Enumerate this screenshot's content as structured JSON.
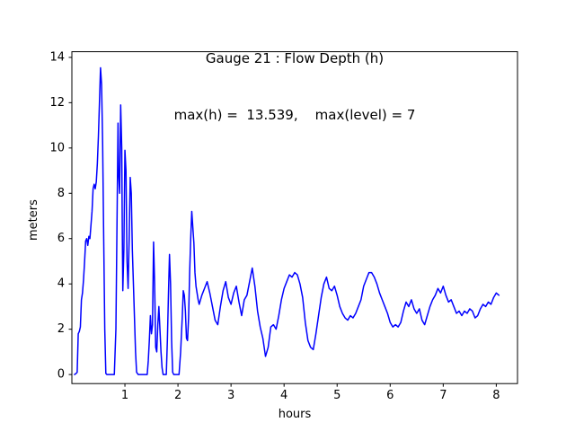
{
  "title": {
    "line1": "Gauge 21 : Flow Depth (h)",
    "line2": "max(h) =  13.539,    max(level) = 7"
  },
  "chart_data": {
    "type": "line",
    "title": "Gauge 21 : Flow Depth (h)",
    "subtitle": "max(h) =  13.539,    max(level) = 7",
    "xlabel": "hours",
    "ylabel": "meters",
    "xlim": [
      0,
      8.4
    ],
    "ylim": [
      -0.4,
      14.25
    ],
    "xticks": [
      1,
      2,
      3,
      4,
      5,
      6,
      7,
      8
    ],
    "yticks": [
      0,
      2,
      4,
      6,
      8,
      10,
      12,
      14
    ],
    "grid": false,
    "legend": "none",
    "line_color": "#0000ff",
    "max_h": 13.539,
    "max_level": 7,
    "series": [
      {
        "name": "flow-depth",
        "x": [
          0.05,
          0.08,
          0.1,
          0.12,
          0.14,
          0.16,
          0.18,
          0.2,
          0.22,
          0.24,
          0.26,
          0.28,
          0.3,
          0.32,
          0.34,
          0.36,
          0.38,
          0.4,
          0.42,
          0.44,
          0.46,
          0.48,
          0.5,
          0.52,
          0.54,
          0.56,
          0.58,
          0.6,
          0.62,
          0.64,
          0.66,
          0.8,
          0.83,
          0.85,
          0.87,
          0.88,
          0.9,
          0.92,
          0.94,
          0.95,
          0.96,
          0.98,
          1.0,
          1.02,
          1.04,
          1.06,
          1.08,
          1.1,
          1.12,
          1.14,
          1.16,
          1.18,
          1.2,
          1.22,
          1.25,
          1.42,
          1.44,
          1.46,
          1.48,
          1.5,
          1.52,
          1.54,
          1.56,
          1.58,
          1.6,
          1.62,
          1.64,
          1.66,
          1.68,
          1.7,
          1.72,
          1.78,
          1.8,
          1.82,
          1.84,
          1.86,
          1.88,
          1.9,
          1.92,
          2.02,
          2.05,
          2.08,
          2.1,
          2.12,
          2.14,
          2.16,
          2.18,
          2.2,
          2.22,
          2.24,
          2.26,
          2.28,
          2.3,
          2.32,
          2.34,
          2.36,
          2.38,
          2.4,
          2.45,
          2.5,
          2.55,
          2.6,
          2.65,
          2.7,
          2.75,
          2.8,
          2.85,
          2.9,
          2.95,
          3.0,
          3.05,
          3.1,
          3.15,
          3.2,
          3.25,
          3.3,
          3.35,
          3.4,
          3.45,
          3.5,
          3.55,
          3.6,
          3.65,
          3.7,
          3.75,
          3.8,
          3.85,
          3.9,
          3.95,
          4.0,
          4.05,
          4.1,
          4.15,
          4.2,
          4.25,
          4.3,
          4.35,
          4.4,
          4.45,
          4.5,
          4.55,
          4.6,
          4.65,
          4.7,
          4.75,
          4.8,
          4.85,
          4.9,
          4.95,
          5.0,
          5.05,
          5.1,
          5.15,
          5.2,
          5.25,
          5.3,
          5.35,
          5.4,
          5.45,
          5.5,
          5.55,
          5.6,
          5.65,
          5.7,
          5.75,
          5.8,
          5.85,
          5.9,
          5.95,
          6.0,
          6.05,
          6.1,
          6.15,
          6.2,
          6.25,
          6.3,
          6.35,
          6.4,
          6.45,
          6.5,
          6.55,
          6.6,
          6.65,
          6.7,
          6.75,
          6.8,
          6.85,
          6.9,
          6.95,
          7.0,
          7.05,
          7.1,
          7.15,
          7.2,
          7.25,
          7.3,
          7.35,
          7.4,
          7.45,
          7.5,
          7.55,
          7.6,
          7.65,
          7.7,
          7.75,
          7.8,
          7.85,
          7.9,
          7.95,
          8.0,
          8.05
        ],
        "y": [
          0.0,
          0.05,
          0.1,
          1.8,
          1.9,
          2.1,
          3.3,
          3.6,
          4.2,
          5.0,
          5.9,
          6.0,
          5.7,
          6.1,
          6.0,
          6.6,
          7.2,
          8.2,
          8.4,
          8.2,
          8.5,
          9.3,
          10.5,
          12.0,
          13.539,
          12.8,
          10.2,
          6.0,
          2.0,
          0.05,
          0.0,
          0.0,
          2.0,
          6.5,
          11.1,
          9.0,
          8.0,
          11.9,
          10.0,
          6.5,
          3.7,
          5.5,
          9.9,
          9.0,
          5.0,
          3.8,
          6.0,
          8.7,
          8.0,
          5.5,
          4.0,
          2.5,
          1.0,
          0.1,
          0.0,
          0.0,
          0.6,
          1.5,
          2.6,
          1.8,
          2.2,
          5.85,
          4.0,
          1.2,
          1.0,
          2.2,
          3.0,
          2.0,
          1.0,
          0.3,
          0.0,
          0.0,
          1.5,
          3.5,
          5.3,
          4.0,
          1.5,
          0.1,
          0.0,
          0.0,
          1.0,
          2.5,
          3.7,
          3.5,
          2.8,
          1.6,
          1.5,
          2.5,
          4.5,
          6.0,
          7.2,
          6.5,
          5.8,
          4.5,
          3.9,
          3.6,
          3.3,
          3.1,
          3.5,
          3.8,
          4.1,
          3.6,
          3.0,
          2.4,
          2.2,
          3.0,
          3.7,
          4.1,
          3.4,
          3.1,
          3.6,
          3.9,
          3.2,
          2.6,
          3.3,
          3.5,
          4.1,
          4.7,
          3.9,
          2.8,
          2.1,
          1.6,
          0.8,
          1.2,
          2.1,
          2.2,
          2.0,
          2.6,
          3.3,
          3.8,
          4.1,
          4.4,
          4.3,
          4.5,
          4.4,
          4.0,
          3.4,
          2.3,
          1.5,
          1.2,
          1.1,
          1.8,
          2.6,
          3.4,
          4.0,
          4.3,
          3.8,
          3.7,
          3.9,
          3.5,
          3.0,
          2.7,
          2.5,
          2.4,
          2.6,
          2.5,
          2.7,
          3.0,
          3.3,
          3.9,
          4.2,
          4.5,
          4.5,
          4.3,
          4.0,
          3.6,
          3.3,
          3.0,
          2.7,
          2.3,
          2.1,
          2.2,
          2.1,
          2.3,
          2.8,
          3.2,
          3.0,
          3.3,
          2.9,
          2.7,
          2.9,
          2.4,
          2.2,
          2.6,
          3.0,
          3.3,
          3.5,
          3.8,
          3.6,
          3.9,
          3.5,
          3.2,
          3.3,
          3.0,
          2.7,
          2.8,
          2.6,
          2.8,
          2.7,
          2.9,
          2.8,
          2.5,
          2.6,
          2.9,
          3.1,
          3.0,
          3.2,
          3.1,
          3.4,
          3.6,
          3.5
        ]
      }
    ]
  }
}
